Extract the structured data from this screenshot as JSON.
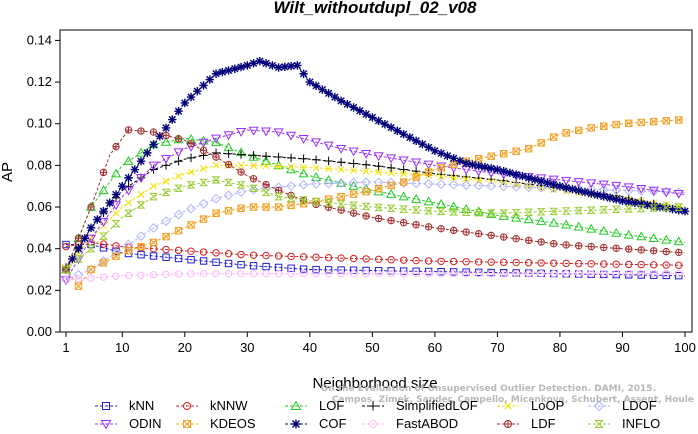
{
  "chart_data": {
    "type": "line",
    "title": "Wilt_withoutdupl_02_v08",
    "xlabel": "Neighborhood size",
    "ylabel": "AP",
    "xlim": [
      1,
      100
    ],
    "ylim": [
      0,
      0.145
    ],
    "xticks": [
      "1",
      "10",
      "20",
      "30",
      "40",
      "50",
      "60",
      "70",
      "80",
      "90",
      "100"
    ],
    "yticks": [
      "0.00",
      "0.02",
      "0.04",
      "0.06",
      "0.08",
      "0.10",
      "0.12",
      "0.14"
    ],
    "grid": false,
    "legend_position": "bottom",
    "credit_lines": [
      "Campos, Zimek, Sander, Campello, Micenkova, Schubert, Assent, Houle",
      "On the Evaluation of Unsupervised Outlier Detection. DAMI, 2015."
    ],
    "series": [
      {
        "name": "kNN",
        "color": "#1f1fd6",
        "marker": "square",
        "knots": [
          [
            1,
            0.042
          ],
          [
            5,
            0.042
          ],
          [
            10,
            0.038
          ],
          [
            20,
            0.035
          ],
          [
            30,
            0.032
          ],
          [
            40,
            0.03
          ],
          [
            60,
            0.029
          ],
          [
            80,
            0.028
          ],
          [
            100,
            0.027
          ]
        ]
      },
      {
        "name": "kNNW",
        "color": "#d62020",
        "marker": "circle",
        "knots": [
          [
            1,
            0.041
          ],
          [
            5,
            0.043
          ],
          [
            10,
            0.041
          ],
          [
            20,
            0.039
          ],
          [
            30,
            0.037
          ],
          [
            40,
            0.036
          ],
          [
            60,
            0.034
          ],
          [
            80,
            0.033
          ],
          [
            100,
            0.032
          ]
        ]
      },
      {
        "name": "LOF",
        "color": "#22cc22",
        "marker": "triangle-up",
        "knots": [
          [
            1,
            0.03
          ],
          [
            5,
            0.06
          ],
          [
            10,
            0.08
          ],
          [
            15,
            0.09
          ],
          [
            20,
            0.093
          ],
          [
            25,
            0.091
          ],
          [
            30,
            0.085
          ],
          [
            40,
            0.075
          ],
          [
            50,
            0.068
          ],
          [
            60,
            0.062
          ],
          [
            70,
            0.056
          ],
          [
            80,
            0.052
          ],
          [
            90,
            0.047
          ],
          [
            100,
            0.043
          ]
        ]
      },
      {
        "name": "SimplifiedLOF",
        "color": "#000000",
        "marker": "plus",
        "knots": [
          [
            1,
            0.031
          ],
          [
            5,
            0.05
          ],
          [
            10,
            0.068
          ],
          [
            15,
            0.078
          ],
          [
            20,
            0.083
          ],
          [
            25,
            0.086
          ],
          [
            30,
            0.085
          ],
          [
            40,
            0.083
          ],
          [
            50,
            0.08
          ],
          [
            60,
            0.076
          ],
          [
            70,
            0.073
          ],
          [
            80,
            0.069
          ],
          [
            90,
            0.065
          ],
          [
            100,
            0.058
          ]
        ]
      },
      {
        "name": "LoOP",
        "color": "#f2e000",
        "marker": "x",
        "knots": [
          [
            1,
            0.031
          ],
          [
            5,
            0.045
          ],
          [
            10,
            0.06
          ],
          [
            15,
            0.07
          ],
          [
            20,
            0.076
          ],
          [
            25,
            0.08
          ],
          [
            30,
            0.08
          ],
          [
            40,
            0.079
          ],
          [
            50,
            0.077
          ],
          [
            60,
            0.075
          ],
          [
            70,
            0.072
          ],
          [
            80,
            0.068
          ],
          [
            90,
            0.064
          ],
          [
            100,
            0.06
          ]
        ]
      },
      {
        "name": "LDOF",
        "color": "#b3b3ff",
        "marker": "diamond",
        "knots": [
          [
            1,
            0.025
          ],
          [
            5,
            0.03
          ],
          [
            10,
            0.04
          ],
          [
            15,
            0.05
          ],
          [
            20,
            0.058
          ],
          [
            25,
            0.064
          ],
          [
            30,
            0.068
          ],
          [
            40,
            0.071
          ],
          [
            50,
            0.072
          ],
          [
            60,
            0.071
          ],
          [
            70,
            0.07
          ],
          [
            80,
            0.069
          ],
          [
            90,
            0.068
          ],
          [
            100,
            0.067
          ]
        ]
      },
      {
        "name": "ODIN",
        "color": "#9b30ff",
        "marker": "triangle-down",
        "knots": [
          [
            1,
            0.025
          ],
          [
            5,
            0.045
          ],
          [
            10,
            0.065
          ],
          [
            15,
            0.08
          ],
          [
            20,
            0.088
          ],
          [
            25,
            0.093
          ],
          [
            30,
            0.097
          ],
          [
            35,
            0.096
          ],
          [
            40,
            0.092
          ],
          [
            45,
            0.088
          ],
          [
            50,
            0.085
          ],
          [
            60,
            0.08
          ],
          [
            70,
            0.076
          ],
          [
            80,
            0.073
          ],
          [
            90,
            0.07
          ],
          [
            100,
            0.066
          ]
        ]
      },
      {
        "name": "KDEOS",
        "color": "#f0a020",
        "marker": "square-x",
        "knots": [
          [
            1,
            0.03
          ],
          [
            3,
            0.022
          ],
          [
            5,
            0.03
          ],
          [
            10,
            0.038
          ],
          [
            15,
            0.043
          ],
          [
            20,
            0.05
          ],
          [
            25,
            0.057
          ],
          [
            30,
            0.06
          ],
          [
            35,
            0.06
          ],
          [
            40,
            0.062
          ],
          [
            45,
            0.065
          ],
          [
            50,
            0.068
          ],
          [
            55,
            0.072
          ],
          [
            60,
            0.078
          ],
          [
            65,
            0.082
          ],
          [
            70,
            0.085
          ],
          [
            75,
            0.088
          ],
          [
            80,
            0.095
          ],
          [
            85,
            0.098
          ],
          [
            90,
            0.1
          ],
          [
            95,
            0.101
          ],
          [
            100,
            0.102
          ]
        ]
      },
      {
        "name": "COF",
        "color": "#00007a",
        "marker": "asterisk",
        "knots": [
          [
            1,
            0.03
          ],
          [
            5,
            0.05
          ],
          [
            10,
            0.07
          ],
          [
            15,
            0.09
          ],
          [
            20,
            0.11
          ],
          [
            25,
            0.124
          ],
          [
            30,
            0.128
          ],
          [
            32,
            0.13
          ],
          [
            35,
            0.127
          ],
          [
            38,
            0.128
          ],
          [
            40,
            0.12
          ],
          [
            45,
            0.111
          ],
          [
            50,
            0.103
          ],
          [
            55,
            0.095
          ],
          [
            60,
            0.087
          ],
          [
            65,
            0.081
          ],
          [
            70,
            0.078
          ],
          [
            80,
            0.07
          ],
          [
            90,
            0.063
          ],
          [
            100,
            0.058
          ]
        ]
      },
      {
        "name": "FastABOD",
        "color": "#ffb6ff",
        "marker": "circle",
        "knots": [
          [
            1,
            0.025
          ],
          [
            10,
            0.027
          ],
          [
            20,
            0.028
          ],
          [
            40,
            0.028
          ],
          [
            60,
            0.028
          ],
          [
            80,
            0.028
          ],
          [
            100,
            0.028
          ]
        ]
      },
      {
        "name": "LDF",
        "color": "#a03030",
        "marker": "circle-plus",
        "knots": [
          [
            1,
            0.03
          ],
          [
            5,
            0.06
          ],
          [
            8,
            0.085
          ],
          [
            11,
            0.097
          ],
          [
            15,
            0.096
          ],
          [
            20,
            0.092
          ],
          [
            25,
            0.084
          ],
          [
            30,
            0.075
          ],
          [
            35,
            0.068
          ],
          [
            40,
            0.062
          ],
          [
            50,
            0.055
          ],
          [
            60,
            0.05
          ],
          [
            70,
            0.046
          ],
          [
            80,
            0.042
          ],
          [
            90,
            0.04
          ],
          [
            100,
            0.038
          ]
        ]
      },
      {
        "name": "INFLO",
        "color": "#99cc33",
        "marker": "hourglass",
        "knots": [
          [
            1,
            0.03
          ],
          [
            5,
            0.04
          ],
          [
            10,
            0.055
          ],
          [
            15,
            0.065
          ],
          [
            20,
            0.07
          ],
          [
            25,
            0.073
          ],
          [
            30,
            0.07
          ],
          [
            35,
            0.065
          ],
          [
            40,
            0.063
          ],
          [
            50,
            0.06
          ],
          [
            60,
            0.058
          ],
          [
            70,
            0.057
          ],
          [
            80,
            0.058
          ],
          [
            90,
            0.059
          ],
          [
            100,
            0.06
          ]
        ]
      }
    ]
  }
}
